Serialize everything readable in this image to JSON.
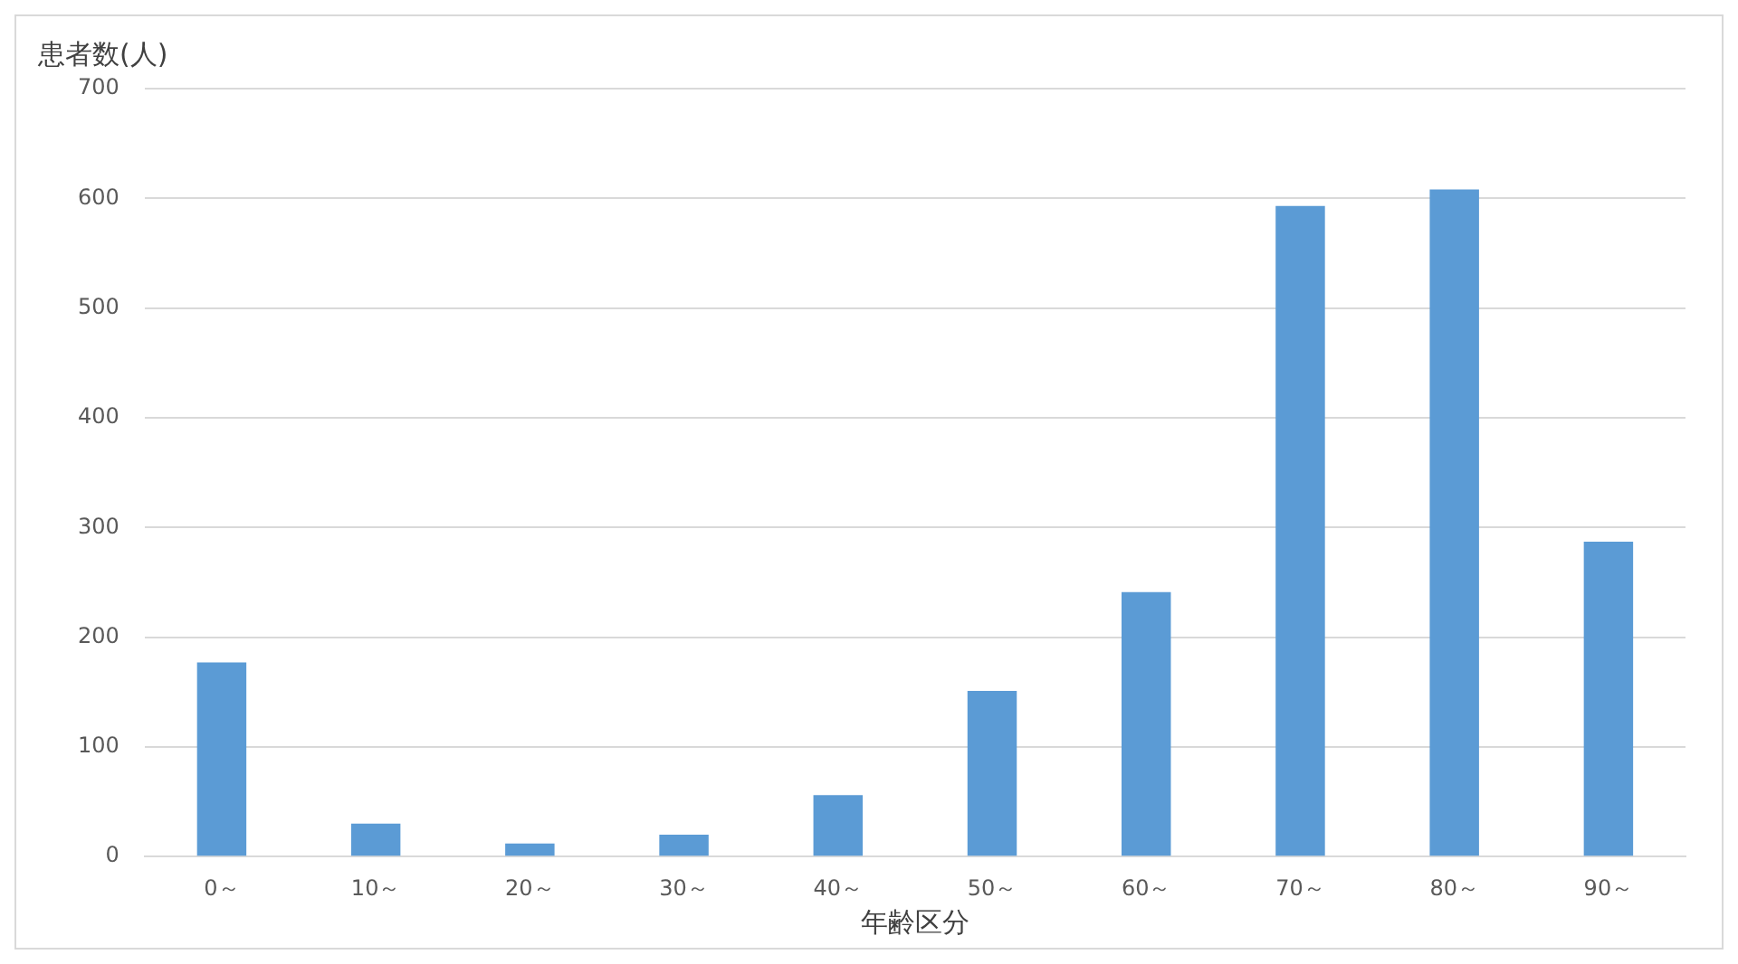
{
  "chart_data": {
    "type": "bar",
    "ylabel": "患者数(人)",
    "xlabel": "年齢区分",
    "categories": [
      "0～",
      "10～",
      "20～",
      "30～",
      "40～",
      "50～",
      "60～",
      "70～",
      "80～",
      "90～"
    ],
    "values": [
      177,
      30,
      12,
      20,
      56,
      151,
      241,
      593,
      608,
      287
    ],
    "color": "#5b9bd5",
    "ylim": [
      0,
      700
    ],
    "yticks": [
      0,
      100,
      200,
      300,
      400,
      500,
      600,
      700
    ],
    "grid": "y"
  }
}
